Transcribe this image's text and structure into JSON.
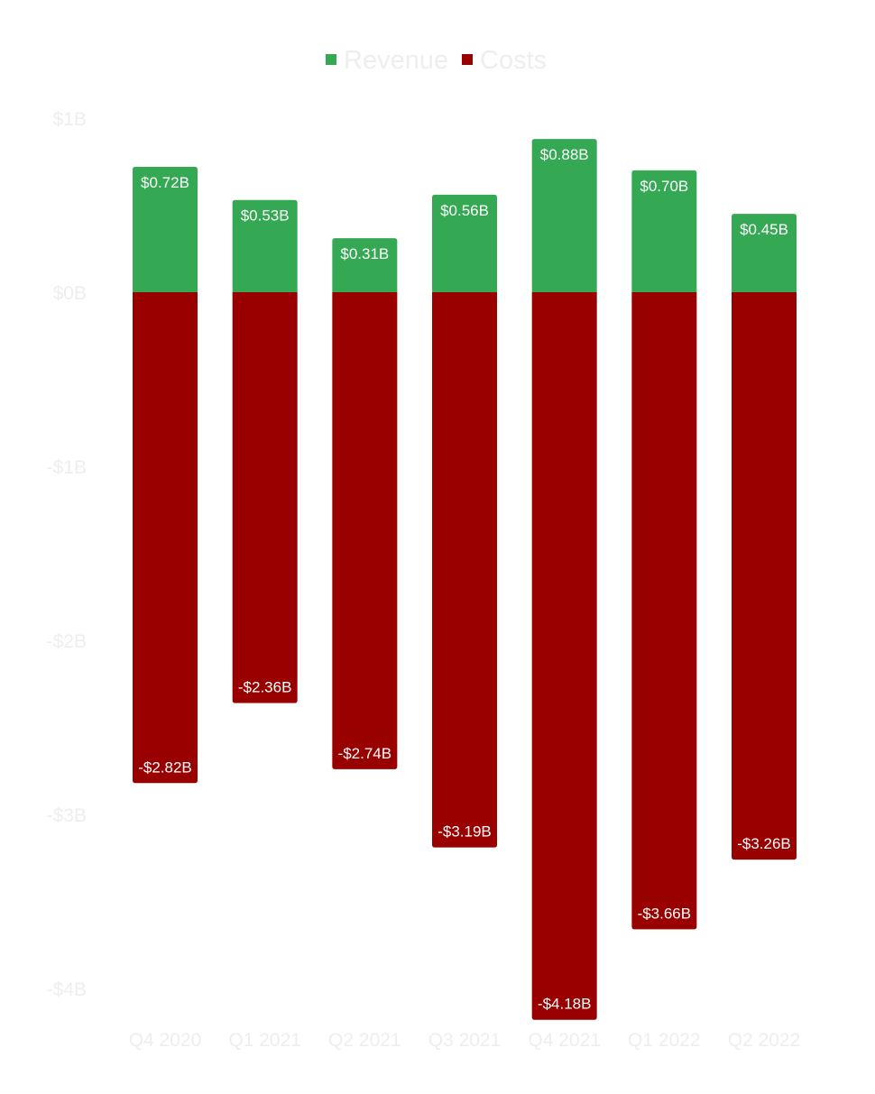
{
  "chart_data": {
    "type": "bar",
    "stacked": true,
    "categories": [
      "Q4 2020",
      "Q1 2021",
      "Q2 2021",
      "Q3 2021",
      "Q4 2021",
      "Q1 2022",
      "Q2 2022"
    ],
    "series": [
      {
        "name": "Revenue",
        "color": "#34a853",
        "values": [
          0.72,
          0.53,
          0.31,
          0.56,
          0.88,
          0.7,
          0.45
        ],
        "labels": [
          "$0.72B",
          "$0.53B",
          "$0.31B",
          "$0.56B",
          "$0.88B",
          "$0.70B",
          "$0.45B"
        ]
      },
      {
        "name": "Costs",
        "color": "#990000",
        "values": [
          -2.82,
          -2.36,
          -2.74,
          -3.19,
          -4.18,
          -3.66,
          -3.26
        ],
        "labels": [
          "-$2.82B",
          "-$2.36B",
          "-$2.74B",
          "-$3.19B",
          "-$4.18B",
          "-$3.66B",
          "-$3.26B"
        ]
      }
    ],
    "y_ticks": [
      1,
      0,
      -1,
      -2,
      -3,
      -4
    ],
    "y_tick_labels": [
      "$1B",
      "$0B",
      "-$1B",
      "-$2B",
      "-$3B",
      "-$4B"
    ],
    "ylim": [
      -4.2,
      1
    ],
    "grid": false,
    "legend": "top-center",
    "axis_text_color": "#eeeeee",
    "legend_text_color": "#eeeeee"
  }
}
